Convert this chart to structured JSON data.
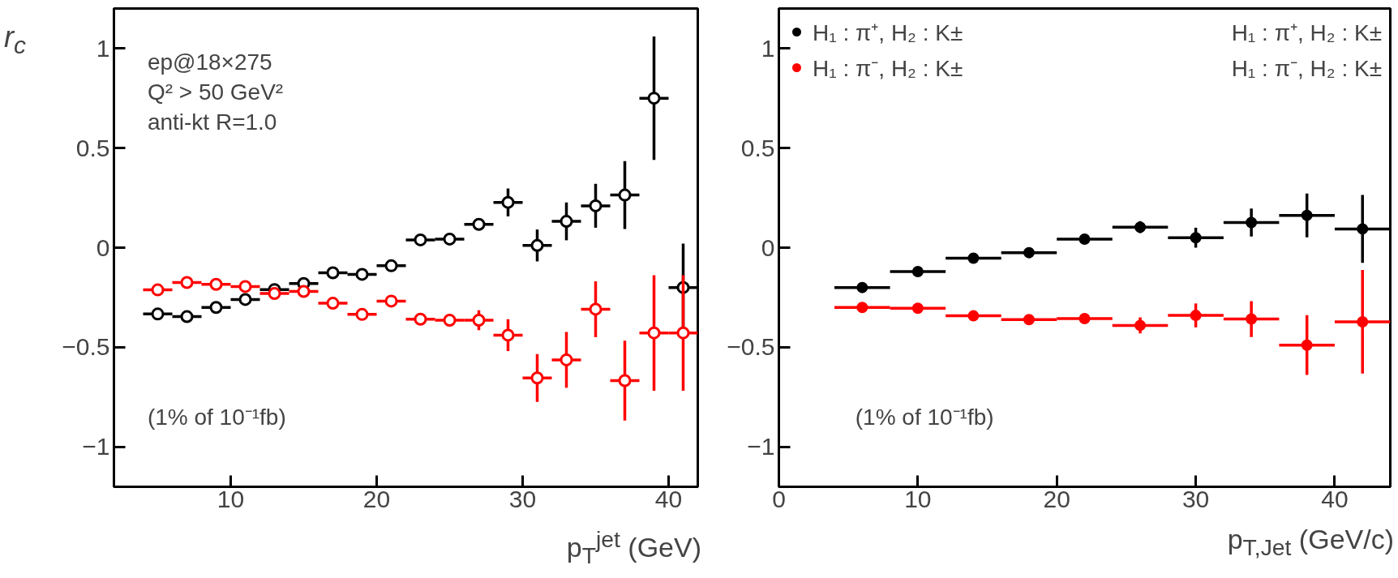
{
  "chart_data": [
    {
      "type": "scatter",
      "ylabel": "r$_{c}$",
      "xlabel": "p$_{T}$$^{jet}$ (GeV)",
      "xlim": [
        2,
        42
      ],
      "ylim": [
        -1.2,
        1.2
      ],
      "xticks": [
        10,
        20,
        30,
        40
      ],
      "yticks": [
        -1,
        -0.5,
        0,
        0.5,
        1
      ],
      "marker": "circle_open",
      "legend": "right",
      "grid": false,
      "annotations": [
        "ep@18×275",
        "Q² > 50 GeV²",
        "anti-kt R=1.0",
        "(1% of 10⁻¹fb)"
      ],
      "series": [
        {
          "name": "H₁ : π⁺, H₂ : K±",
          "color": "#000000",
          "x": [
            5,
            7,
            9,
            11,
            13,
            15,
            17,
            19,
            21,
            23,
            25,
            27,
            29,
            31,
            33,
            35,
            37,
            39,
            41
          ],
          "values": [
            -0.333,
            -0.346,
            -0.3,
            -0.26,
            -0.21,
            -0.18,
            -0.126,
            -0.134,
            -0.091,
            0.039,
            0.043,
            0.117,
            0.227,
            0.011,
            0.132,
            0.21,
            0.264,
            0.75,
            -0.2
          ],
          "errors": [
            null,
            null,
            null,
            null,
            null,
            null,
            null,
            null,
            null,
            null,
            0.02,
            0.03,
            0.07,
            0.08,
            0.095,
            0.11,
            0.17,
            0.31,
            0.22
          ],
          "xerrors": [
            1,
            1,
            1,
            1,
            1,
            1,
            1,
            1,
            1,
            1,
            1,
            1,
            1,
            1,
            1,
            1,
            1,
            1,
            1
          ]
        },
        {
          "name": "H₁ : π⁻, H₂ : K±",
          "color": "#ff0000",
          "x": [
            5,
            7,
            9,
            11,
            13,
            15,
            17,
            19,
            21,
            23,
            25,
            27,
            29,
            31,
            33,
            35,
            37,
            39,
            41
          ],
          "values": [
            -0.212,
            -0.175,
            -0.184,
            -0.195,
            -0.23,
            -0.22,
            -0.279,
            -0.335,
            -0.268,
            -0.359,
            -0.364,
            -0.364,
            -0.439,
            -0.654,
            -0.563,
            -0.309,
            -0.667,
            -0.428,
            -0.428
          ],
          "errors": [
            null,
            null,
            null,
            null,
            null,
            null,
            null,
            null,
            null,
            null,
            0.03,
            0.05,
            0.08,
            0.12,
            0.14,
            0.14,
            0.2,
            0.29,
            0.29
          ],
          "xerrors": [
            1,
            1,
            1,
            1,
            1,
            1,
            1,
            1,
            1,
            1,
            1,
            1,
            1,
            1,
            1,
            1,
            1,
            1,
            1
          ]
        }
      ]
    },
    {
      "type": "scatter",
      "xlabel": "p$_{T,Jet}$ (GeV/c)",
      "xlim": [
        0,
        44
      ],
      "ylim": [
        -1.2,
        1.2
      ],
      "xticks": [
        0,
        10,
        20,
        30,
        40
      ],
      "yticks": [
        -1,
        -0.5,
        0,
        0.5,
        1
      ],
      "marker": "circle",
      "legend": "top left",
      "grid": false,
      "annotations": [
        "(1% of 10⁻¹fb)"
      ],
      "series": [
        {
          "name": "H₁ : π⁺, H₂ : K±",
          "color": "#000000",
          "x": [
            6,
            10,
            14,
            18,
            22,
            26,
            30,
            34,
            38,
            42
          ],
          "values": [
            -0.2,
            -0.12,
            -0.053,
            -0.025,
            0.043,
            0.103,
            0.05,
            0.126,
            0.162,
            0.094
          ],
          "errors": [
            null,
            null,
            null,
            null,
            null,
            0.03,
            0.05,
            0.07,
            0.11,
            0.17
          ],
          "xerrors": [
            2,
            2,
            2,
            2,
            2,
            2,
            2,
            2,
            2,
            2
          ]
        },
        {
          "name": "H₁ : π⁻, H₂ : K±",
          "color": "#ff0000",
          "x": [
            6,
            10,
            14,
            18,
            22,
            26,
            30,
            34,
            38,
            42
          ],
          "values": [
            -0.3,
            -0.304,
            -0.342,
            -0.361,
            -0.356,
            -0.39,
            -0.34,
            -0.358,
            -0.489,
            -0.372
          ],
          "errors": [
            null,
            null,
            null,
            null,
            null,
            0.04,
            0.06,
            0.09,
            0.15,
            0.26
          ],
          "xerrors": [
            2,
            2,
            2,
            2,
            2,
            2,
            2,
            2,
            2,
            2
          ]
        }
      ]
    }
  ]
}
